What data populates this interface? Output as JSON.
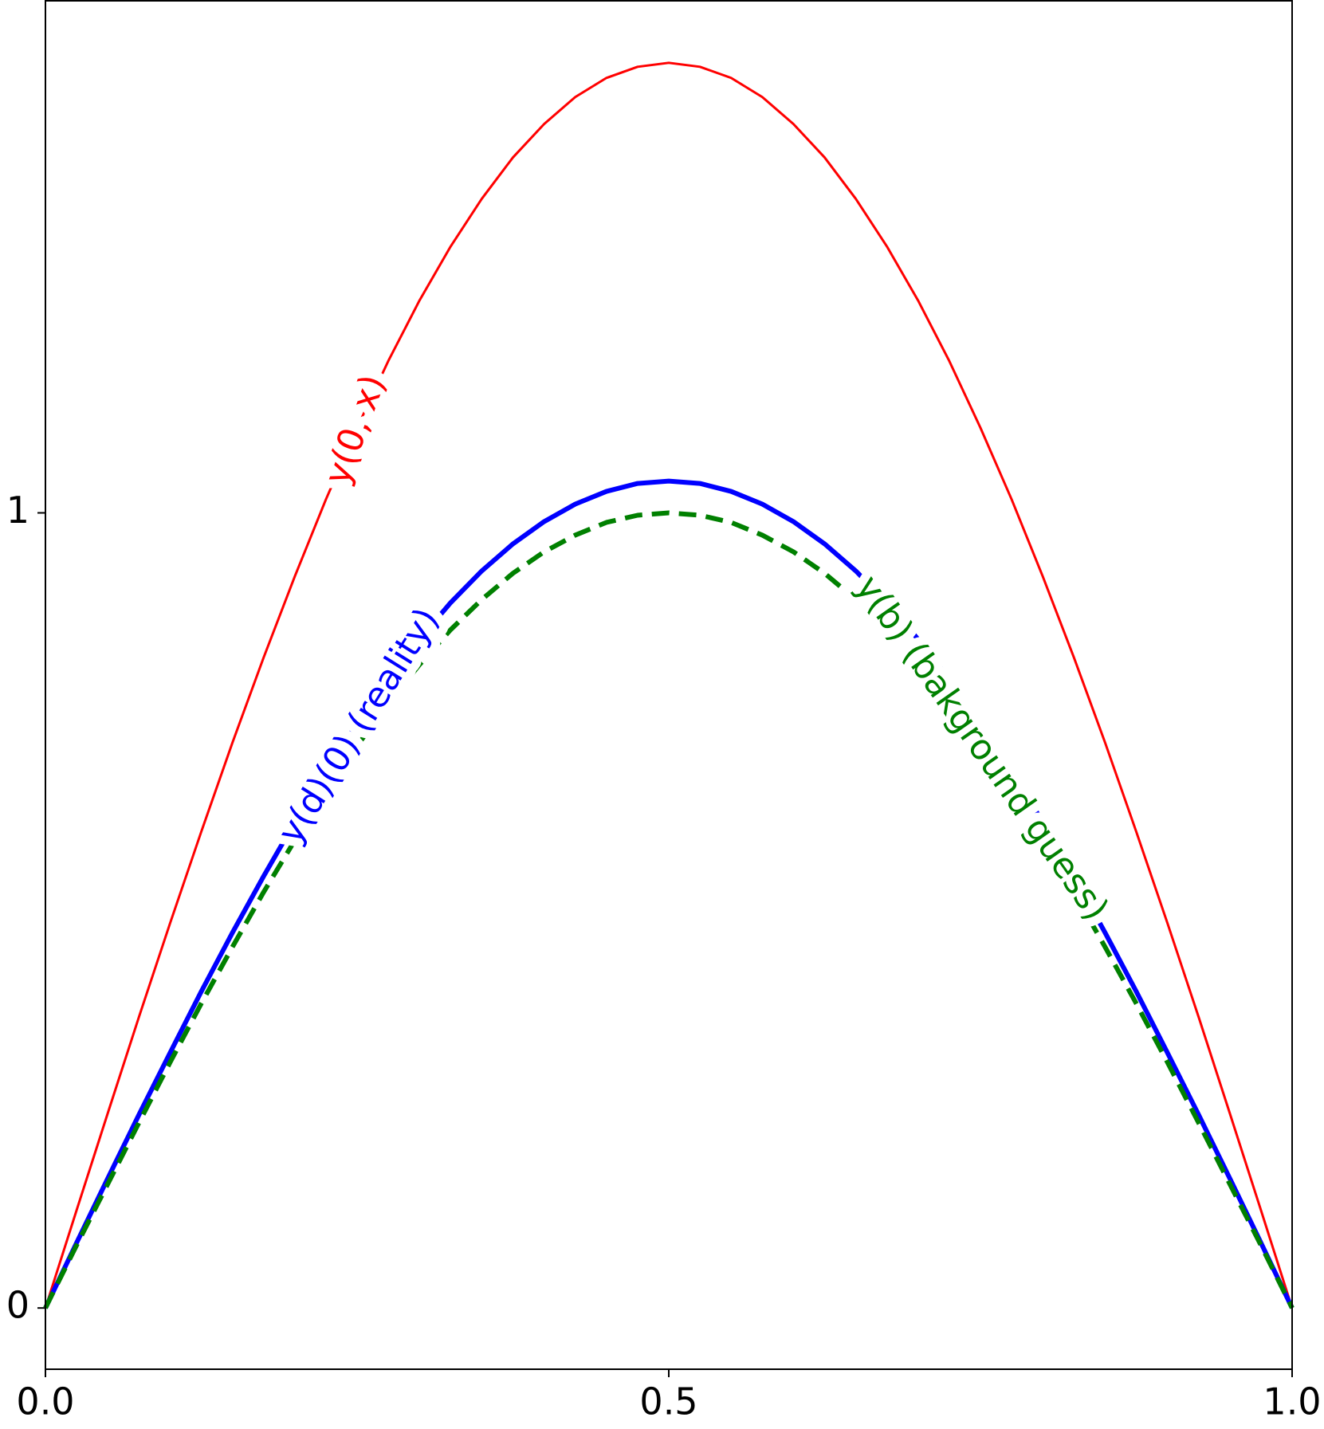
{
  "chart_data": {
    "type": "line",
    "x": [
      0,
      0.025,
      0.05,
      0.075,
      0.1,
      0.125,
      0.15,
      0.175,
      0.2,
      0.225,
      0.25,
      0.275,
      0.3,
      0.325,
      0.35,
      0.375,
      0.4,
      0.425,
      0.45,
      0.475,
      0.5,
      0.525,
      0.55,
      0.575,
      0.6,
      0.625,
      0.65,
      0.675,
      0.7,
      0.725,
      0.75,
      0.775,
      0.8,
      0.825,
      0.85,
      0.875,
      0.9,
      0.925,
      0.95,
      0.975,
      1
    ],
    "series": [
      {
        "name": "y(0, x)",
        "color": "#ff0000",
        "style": "solid",
        "width": 3,
        "values": [
          0,
          0.123,
          0.245,
          0.366,
          0.484,
          0.599,
          0.711,
          0.818,
          0.92,
          1.017,
          1.107,
          1.191,
          1.267,
          1.335,
          1.395,
          1.447,
          1.489,
          1.523,
          1.547,
          1.561,
          1.566,
          1.561,
          1.547,
          1.523,
          1.489,
          1.447,
          1.395,
          1.335,
          1.267,
          1.191,
          1.107,
          1.017,
          0.92,
          0.818,
          0.711,
          0.599,
          0.484,
          0.366,
          0.245,
          0.123,
          0
        ]
      },
      {
        "name": "y(d)(0) (reality)",
        "color": "#0000ff",
        "style": "solid",
        "width": 6,
        "values": [
          0,
          0.082,
          0.163,
          0.243,
          0.321,
          0.398,
          0.472,
          0.543,
          0.611,
          0.675,
          0.735,
          0.791,
          0.841,
          0.887,
          0.927,
          0.961,
          0.989,
          1.011,
          1.027,
          1.037,
          1.04,
          1.037,
          1.027,
          1.011,
          0.989,
          0.961,
          0.927,
          0.887,
          0.841,
          0.791,
          0.735,
          0.675,
          0.611,
          0.543,
          0.472,
          0.398,
          0.321,
          0.243,
          0.163,
          0.082,
          0
        ]
      },
      {
        "name": "y(b) (bakground guess)",
        "color": "#008000",
        "style": "dashed",
        "width": 6,
        "values": [
          0,
          0.079,
          0.156,
          0.233,
          0.309,
          0.383,
          0.454,
          0.523,
          0.588,
          0.649,
          0.707,
          0.76,
          0.809,
          0.853,
          0.891,
          0.924,
          0.951,
          0.972,
          0.988,
          0.997,
          1,
          0.997,
          0.988,
          0.972,
          0.951,
          0.924,
          0.891,
          0.853,
          0.809,
          0.76,
          0.707,
          0.649,
          0.588,
          0.523,
          0.454,
          0.383,
          0.309,
          0.233,
          0.156,
          0.079,
          0
        ]
      }
    ],
    "xlim": [
      0,
      1
    ],
    "xticks": [
      {
        "value": 0,
        "label": "0.0"
      },
      0.5,
      {
        "value": 1,
        "label": "1.0"
      }
    ],
    "ylim": [
      -0.077,
      1.644
    ],
    "yticks": [
      0,
      1
    ]
  }
}
